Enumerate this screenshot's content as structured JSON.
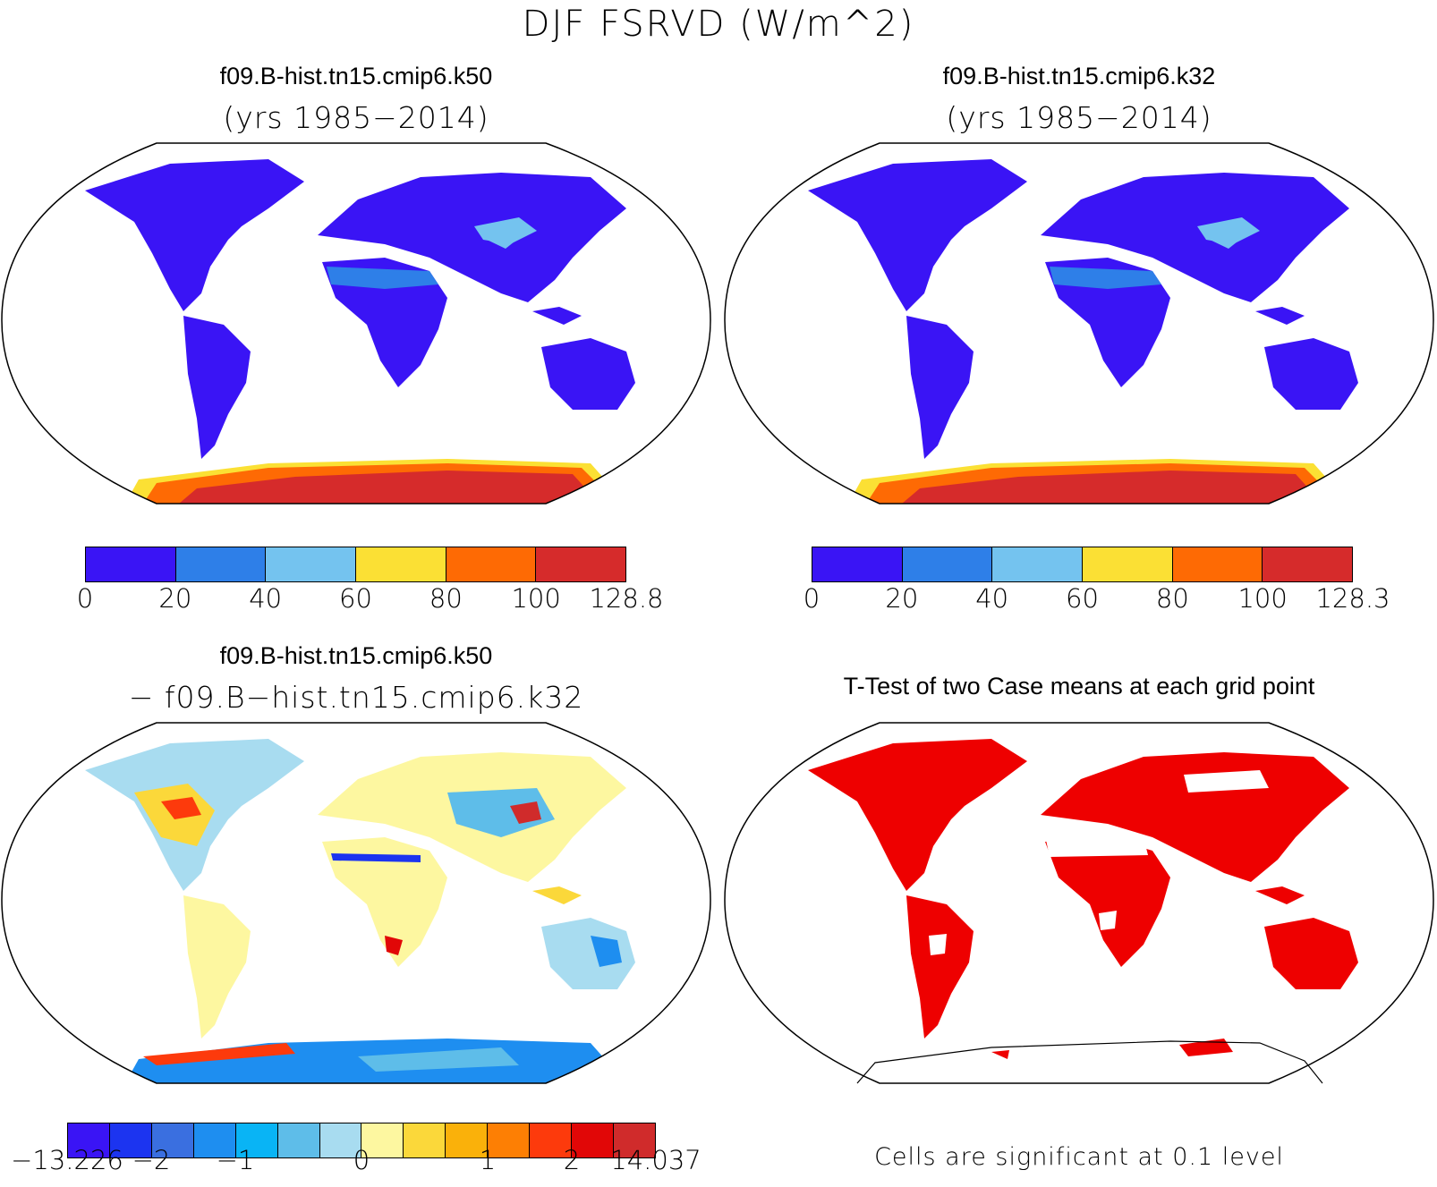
{
  "figure": {
    "title": "DJF FSRVD (W/m^2)"
  },
  "panels": {
    "top_left": {
      "case": "f09.B-hist.tn15.cmip6.k50",
      "years": "(yrs 1985−2014)",
      "colorbar": {
        "labels": [
          "0",
          "20",
          "40",
          "60",
          "80",
          "100",
          "128.8"
        ],
        "colors": [
          "#3a14f5",
          "#2e7fe8",
          "#74c3ef",
          "#fbe034",
          "#fe6a04",
          "#d62b2b"
        ]
      }
    },
    "top_right": {
      "case": "f09.B-hist.tn15.cmip6.k32",
      "years": "(yrs 1985−2014)",
      "colorbar": {
        "labels": [
          "0",
          "20",
          "40",
          "60",
          "80",
          "100",
          "128.3"
        ],
        "colors": [
          "#3a14f5",
          "#2e7fe8",
          "#74c3ef",
          "#fbe034",
          "#fe6a04",
          "#d62b2b"
        ]
      }
    },
    "bottom_left": {
      "case": "f09.B-hist.tn15.cmip6.k50",
      "minus_case": "− f09.B−hist.tn15.cmip6.k32",
      "colorbar": {
        "labels": [
          "−13.226",
          "−2",
          "−1",
          "0",
          "1",
          "2",
          "14.037"
        ],
        "colors": [
          "#3a14f5",
          "#1c34f0",
          "#3a6fe0",
          "#1e8ef0",
          "#09b4f5",
          "#5ebde9",
          "#a8dcf0",
          "#fdf7a0",
          "#fbd83a",
          "#fab10a",
          "#fd7f04",
          "#fd3a0c",
          "#e10707",
          "#d02b2b"
        ]
      }
    },
    "bottom_right": {
      "title": "T-Test of two Case means at each grid point",
      "note": "Cells are significant at 0.1 level",
      "significance_color": "#ee0000"
    }
  },
  "fields": {
    "mean_state_colors": {
      "land_low": "#3a14f5",
      "sahara": "#2e7fe8",
      "tibet": "#74c3ef",
      "antarctic_coast": "#fbe034",
      "antarctic_mid": "#fe6a04",
      "antarctic_interior": "#d62b2b"
    }
  }
}
